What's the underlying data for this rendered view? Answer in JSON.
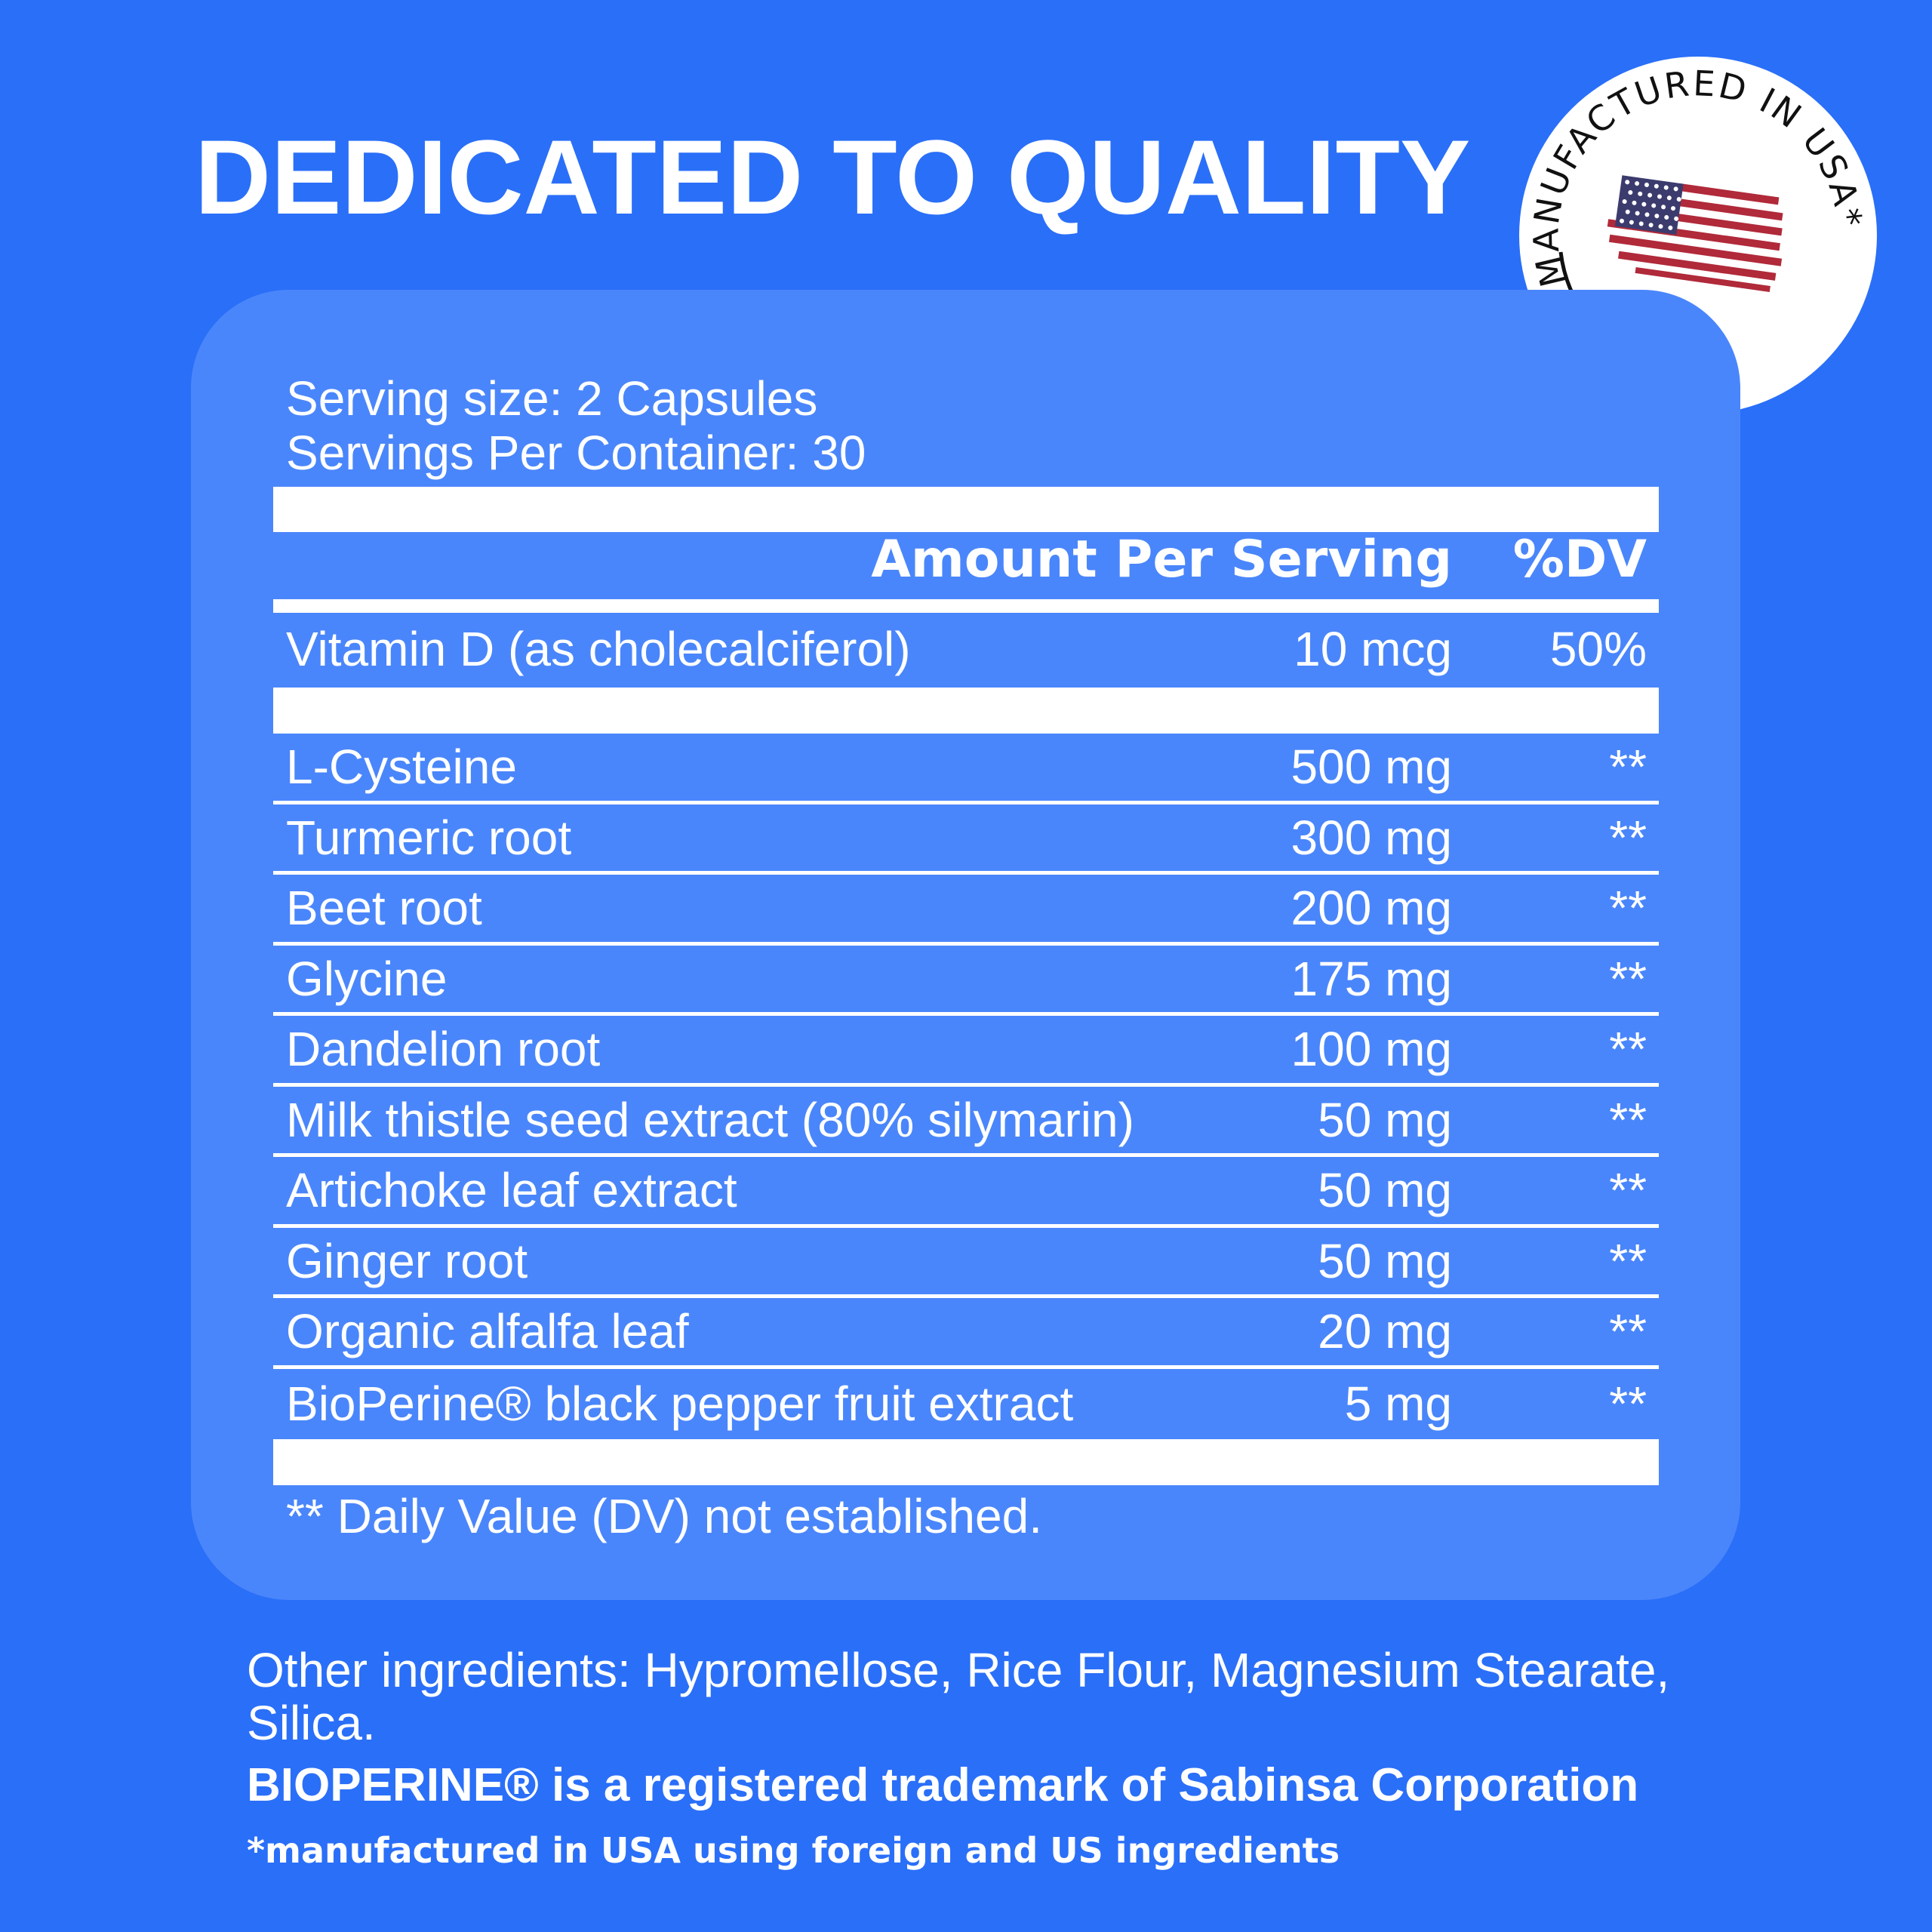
{
  "title": "DEDICATED TO QUALITY",
  "badge": {
    "text": "MANUFACTURED IN USA*",
    "icon": "us-flag-icon"
  },
  "colors": {
    "background": "#2a6ff8",
    "panel": "#4a86fb",
    "text": "#ffffff"
  },
  "facts": {
    "serving_size": "Serving size: 2 Capsules",
    "servings_per_container": "Servings Per Container: 30",
    "header_amount": "Amount Per Serving",
    "header_dv": "%DV",
    "vitamin": {
      "name": "Vitamin D (as cholecalciferol)",
      "amount": "10 mcg",
      "dv": "50%"
    },
    "rows": [
      {
        "name": "L-Cysteine",
        "amount": "500 mg",
        "dv": "**"
      },
      {
        "name": "Turmeric root",
        "amount": "300 mg",
        "dv": "**"
      },
      {
        "name": "Beet root",
        "amount": "200 mg",
        "dv": "**"
      },
      {
        "name": "Glycine",
        "amount": "175 mg",
        "dv": "**"
      },
      {
        "name": "Dandelion root",
        "amount": "100 mg",
        "dv": "**"
      },
      {
        "name": "Milk thistle seed extract (80% silymarin)",
        "amount": "50 mg",
        "dv": "**"
      },
      {
        "name": "Artichoke leaf extract",
        "amount": "50 mg",
        "dv": "**"
      },
      {
        "name": "Ginger root",
        "amount": "50 mg",
        "dv": "**"
      },
      {
        "name": "Organic alfalfa leaf",
        "amount": "20 mg",
        "dv": "**"
      },
      {
        "name": "BioPerine® black pepper fruit extract",
        "amount": "5 mg",
        "dv": "**"
      }
    ],
    "footnote": "** Daily Value (DV) not established."
  },
  "other_ingredients": "Other ingredients: Hypromellose, Rice Flour, Magnesium Stearate, Silica.",
  "trademark": "BIOPERINE® is a registered trademark of Sabinsa Corporation",
  "manufactured_note": "*manufactured in USA using foreign and US ingredients"
}
